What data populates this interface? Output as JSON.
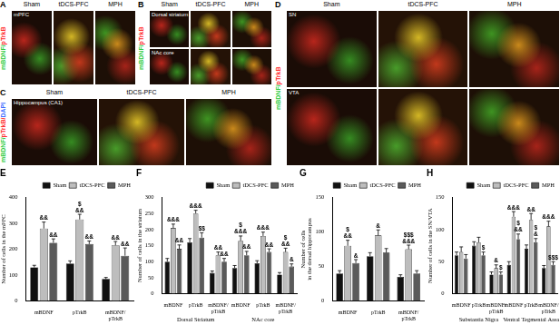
{
  "image_panels": [
    {
      "panel": "A",
      "stain": "mBDNF/pTrkB",
      "columns": [
        "Sham",
        "tDCS-PFC",
        "MPH"
      ],
      "row_labels": [
        "mPFC"
      ]
    },
    {
      "panel": "B",
      "stain": "mBDNF/pTrkB",
      "columns": [
        "Sham",
        "tDCS-PFC",
        "MPH"
      ],
      "row_labels": [
        "Dorsal striatum",
        "NAc core"
      ]
    },
    {
      "panel": "C",
      "stain": "mBDNF/pTrkB/DAPI",
      "columns": [
        "Sham",
        "tDCS-PFC",
        "MPH"
      ],
      "row_labels": [
        "Hippocampus (CA1)"
      ]
    },
    {
      "panel": "D",
      "stain": "mBDNF/pTrkB",
      "columns": [
        "Sham",
        "tDCS-PFC",
        "MPH"
      ],
      "row_labels": [
        "SN",
        "VTA"
      ]
    }
  ],
  "chart_data": [
    {
      "type": "bar",
      "title": "E",
      "ylabel": "Number of cells in the mPFC",
      "categories": [
        "mBDNF",
        "pTrkB",
        "mBDNF/pTrkB"
      ],
      "series": [
        {
          "name": "Sham",
          "color": "#111111",
          "values": [
            130,
            145,
            85
          ],
          "errors": [
            8,
            10,
            6
          ]
        },
        {
          "name": "tDCS-PFC",
          "color": "#bdbdbd",
          "values": [
            280,
            315,
            215
          ],
          "errors": [
            25,
            20,
            15
          ],
          "annotations": [
            [
              "&&"
            ],
            [
              "$",
              "&&"
            ],
            [
              "&&"
            ]
          ]
        },
        {
          "name": "MPH",
          "color": "#5a5a5a",
          "values": [
            225,
            220,
            175
          ],
          "errors": [
            15,
            12,
            30
          ],
          "annotations": [
            [
              "&&"
            ],
            [
              "&&"
            ],
            [
              "&&"
            ]
          ]
        }
      ],
      "ylim": [
        0,
        400
      ],
      "yticks": [
        0,
        100,
        200,
        300,
        400
      ],
      "grid": false,
      "legend": "top-right"
    },
    {
      "type": "bar",
      "title": "F",
      "ylabel": "Number of cells in the striatum",
      "categories": [
        "mBDNF",
        "pTrkB",
        "mBDNF/pTrkB",
        "mBDNF",
        "pTrkB",
        "mBDNF/pTrkB"
      ],
      "groups": [
        "Dorsal Striatum",
        "NAc core"
      ],
      "series": [
        {
          "name": "Sham",
          "color": "#111111",
          "values": [
            100,
            160,
            65,
            80,
            95,
            60
          ],
          "errors": [
            10,
            12,
            6,
            8,
            8,
            6
          ]
        },
        {
          "name": "tDCS-PFC",
          "color": "#bdbdbd",
          "values": [
            205,
            250,
            120,
            165,
            180,
            130
          ],
          "errors": [
            12,
            10,
            10,
            15,
            12,
            12
          ],
          "annotations": [
            [
              "&&&"
            ],
            [
              "&&&"
            ],
            [
              "&&"
            ],
            [
              "$",
              "&&&"
            ],
            [
              "&&&"
            ],
            [
              "$",
              "&&"
            ]
          ]
        },
        {
          "name": "MPH",
          "color": "#5a5a5a",
          "values": [
            140,
            175,
            100,
            120,
            130,
            85
          ],
          "errors": [
            12,
            15,
            10,
            12,
            10,
            8
          ],
          "annotations": [
            [
              "&&"
            ],
            [
              "$$"
            ],
            [
              "&&"
            ],
            [
              "&&"
            ],
            [
              "&&"
            ],
            [
              "&"
            ]
          ]
        }
      ],
      "ylim": [
        0,
        300
      ],
      "yticks": [
        0,
        50,
        100,
        150,
        200,
        250,
        300
      ],
      "grid": false,
      "legend": "top-right"
    },
    {
      "type": "bar",
      "title": "G",
      "ylabel": [
        "Number of cells",
        "in the dorsal hippocampus"
      ],
      "categories": [
        "mBDNF",
        "pTrkB",
        "mBDNF/pTrkB"
      ],
      "series": [
        {
          "name": "Sham",
          "color": "#111111",
          "values": [
            40,
            65,
            35
          ],
          "errors": [
            4,
            5,
            3
          ]
        },
        {
          "name": "tDCS-PFC",
          "color": "#bdbdbd",
          "values": [
            80,
            95,
            75
          ],
          "errors": [
            8,
            8,
            6
          ],
          "annotations": [
            [
              "$",
              "&&"
            ],
            [
              "&"
            ],
            [
              "$$$",
              "&&&"
            ]
          ]
        },
        {
          "name": "MPH",
          "color": "#5a5a5a",
          "values": [
            55,
            70,
            40
          ],
          "errors": [
            5,
            6,
            4
          ],
          "annotations": [
            [
              "&"
            ],
            null,
            null
          ]
        }
      ],
      "ylim": [
        0,
        150
      ],
      "yticks": [
        0,
        50,
        100,
        150
      ],
      "grid": false,
      "legend": "top-right"
    },
    {
      "type": "bar",
      "title": "H",
      "ylabel": "Number of cells in the SN/VTA",
      "categories": [
        "mBDNF",
        "pTrkB",
        "mBDNF/pTrkB",
        "mBDNF",
        "pTrkB",
        "mBDNF/pTrkB"
      ],
      "groups": [
        "Substantia Nigra",
        "Ventral Tegmental Area"
      ],
      "series": [
        {
          "name": "Sham",
          "color": "#111111",
          "values": [
            60,
            75,
            30,
            45,
            70,
            40
          ],
          "errors": [
            5,
            6,
            4,
            5,
            6,
            4
          ]
        },
        {
          "name": "tDCS-PFC",
          "color": "#bdbdbd",
          "values": [
            65,
            80,
            40,
            120,
            115,
            105
          ],
          "errors": [
            8,
            8,
            5,
            8,
            10,
            8
          ],
          "annotations": [
            null,
            null,
            [
              "&"
            ],
            [
              "&&&"
            ],
            [
              "&&"
            ],
            [
              "&&&"
            ]
          ]
        },
        {
          "name": "MPH",
          "color": "#5a5a5a",
          "values": [
            55,
            60,
            30,
            85,
            80,
            45
          ],
          "errors": [
            6,
            5,
            4,
            8,
            6,
            5
          ],
          "annotations": [
            null,
            [
              "$"
            ],
            [
              "$"
            ],
            [
              "$",
              "&&"
            ],
            [
              "$",
              "&"
            ],
            [
              "$$$"
            ]
          ]
        }
      ],
      "ylim": [
        0,
        150
      ],
      "yticks": [
        0,
        50,
        100,
        150
      ],
      "grid": false,
      "legend": "top-right"
    }
  ]
}
